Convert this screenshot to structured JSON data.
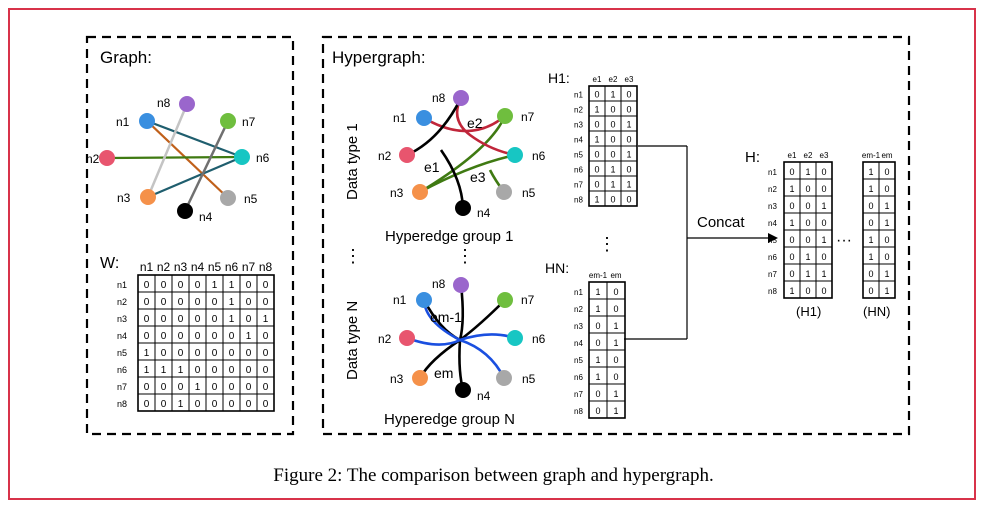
{
  "graph": {
    "title": "Graph:",
    "nodes": [
      "n1",
      "n2",
      "n3",
      "n4",
      "n5",
      "n6",
      "n7",
      "n8"
    ],
    "w_label": "W:",
    "matrix_cols": [
      "n1",
      "n2",
      "n3",
      "n4",
      "n5",
      "n6",
      "n7",
      "n8"
    ],
    "matrix_rows": [
      "n1",
      "n2",
      "n3",
      "n4",
      "n5",
      "n6",
      "n7",
      "n8"
    ],
    "matrix": [
      [
        0,
        0,
        0,
        0,
        1,
        1,
        0,
        0
      ],
      [
        0,
        0,
        0,
        0,
        0,
        1,
        0,
        0
      ],
      [
        0,
        0,
        0,
        0,
        0,
        1,
        0,
        1
      ],
      [
        0,
        0,
        0,
        0,
        0,
        0,
        1,
        0
      ],
      [
        1,
        0,
        0,
        0,
        0,
        0,
        0,
        0
      ],
      [
        1,
        1,
        1,
        0,
        0,
        0,
        0,
        0
      ],
      [
        0,
        0,
        0,
        1,
        0,
        0,
        0,
        0
      ],
      [
        0,
        0,
        1,
        0,
        0,
        0,
        0,
        0
      ]
    ]
  },
  "hypergraph": {
    "title": "Hypergraph:",
    "data_type_1": "Data type 1",
    "data_type_n": "Data type N",
    "vdots": "⋮",
    "group1_label": "Hyperedge group 1",
    "groupN_label": "Hyperedge group N",
    "edge_labels_1": [
      "e1",
      "e2",
      "e3"
    ],
    "edge_labels_n": [
      "em-1",
      "em"
    ],
    "h1_label": "H1:",
    "h1_cols": [
      "e1",
      "e2",
      "e3"
    ],
    "h1_matrix": [
      [
        0,
        1,
        0
      ],
      [
        1,
        0,
        0
      ],
      [
        0,
        0,
        1
      ],
      [
        1,
        0,
        0
      ],
      [
        0,
        0,
        1
      ],
      [
        0,
        1,
        0
      ],
      [
        0,
        1,
        1
      ],
      [
        1,
        0,
        0
      ]
    ],
    "hn_label": "HN:",
    "hn_cols": [
      "em-1",
      "em"
    ],
    "hn_matrix": [
      [
        1,
        0
      ],
      [
        1,
        0
      ],
      [
        0,
        1
      ],
      [
        0,
        1
      ],
      [
        1,
        0
      ],
      [
        1,
        0
      ],
      [
        0,
        1
      ],
      [
        0,
        1
      ]
    ],
    "row_labels": [
      "n1",
      "n2",
      "n3",
      "n4",
      "n5",
      "n6",
      "n7",
      "n8"
    ],
    "concat_label": "Concat",
    "h_label": "H:",
    "h_left_cols": [
      "e1",
      "e2",
      "e3"
    ],
    "h_right_cols": [
      "em-1",
      "em"
    ],
    "hdots": "···",
    "h_left_caption": "(H1)",
    "h_right_caption": "(HN)"
  },
  "caption": "Figure 2: The comparison between graph and hypergraph.",
  "colors": {
    "frame": "#d8334a",
    "n1": "#3a8fe0",
    "n2": "#e8556e",
    "n3": "#f5914a",
    "n4": "#000000",
    "n5": "#a8a8a8",
    "n6": "#17c6c3",
    "n7": "#6fbe3e",
    "n8": "#9a66cc",
    "edge_red": "#c0263a",
    "edge_green": "#3f7a12",
    "edge_blue": "#1a4fe0",
    "edge_teal": "#1f5e6e",
    "edge_brown": "#c0601a",
    "edge_gray": "#b0b0b0"
  }
}
